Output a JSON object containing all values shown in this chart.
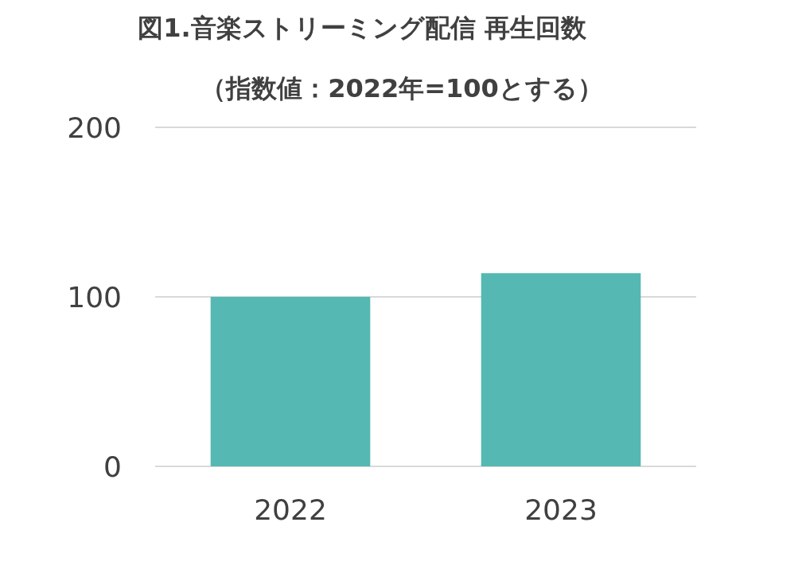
{
  "chart_data": {
    "type": "bar",
    "title": "図1.音楽ストリーミング配信 再生回数",
    "subtitle": "（指数値：2022年=100とする）",
    "categories": [
      "2022",
      "2023"
    ],
    "values": [
      100,
      114
    ],
    "color": "#55b8b2",
    "ylim": [
      0,
      200
    ],
    "yticks": [
      0,
      100,
      200
    ],
    "grid": "y"
  }
}
